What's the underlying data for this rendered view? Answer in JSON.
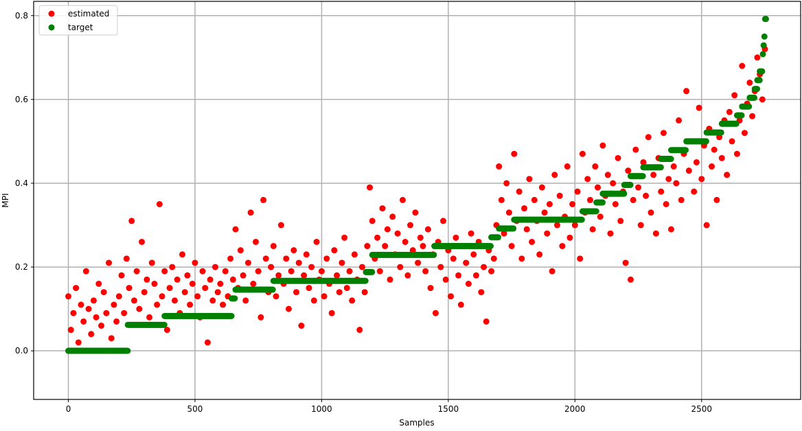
{
  "chart_data": {
    "type": "scatter",
    "title": "",
    "xlabel": "Samples",
    "ylabel": "MPI",
    "xlim": [
      -137,
      2891
    ],
    "ylim": [
      -0.116,
      0.834
    ],
    "xticks": [
      0,
      500,
      1000,
      1500,
      2000,
      2500
    ],
    "xtick_labels": [
      "0",
      "500",
      "1000",
      "1500",
      "2000",
      "2500"
    ],
    "yticks": [
      0.0,
      0.2,
      0.4,
      0.6,
      0.8
    ],
    "ytick_labels": [
      "0.0",
      "0.2",
      "0.4",
      "0.6",
      "0.8"
    ],
    "grid": true,
    "legend_placement": "top-left",
    "series": [
      {
        "name": "estimated",
        "color": "#ff0000",
        "x_step": 10,
        "y": [
          0.13,
          0.05,
          0.09,
          0.15,
          0.02,
          0.11,
          0.07,
          0.19,
          0.1,
          0.04,
          0.12,
          0.08,
          0.16,
          0.06,
          0.14,
          0.09,
          0.21,
          0.03,
          0.11,
          0.07,
          0.13,
          0.18,
          0.09,
          0.22,
          0.15,
          0.31,
          0.12,
          0.19,
          0.1,
          0.26,
          0.14,
          0.17,
          0.08,
          0.21,
          0.16,
          0.11,
          0.35,
          0.13,
          0.19,
          0.05,
          0.15,
          0.2,
          0.12,
          0.17,
          0.09,
          0.23,
          0.14,
          0.18,
          0.11,
          0.16,
          0.21,
          0.13,
          0.08,
          0.19,
          0.15,
          0.02,
          0.17,
          0.12,
          0.2,
          0.14,
          0.16,
          0.11,
          0.19,
          0.13,
          0.22,
          0.17,
          0.29,
          0.15,
          0.24,
          0.18,
          0.12,
          0.21,
          0.33,
          0.16,
          0.26,
          0.19,
          0.08,
          0.36,
          0.22,
          0.14,
          0.2,
          0.25,
          0.13,
          0.18,
          0.3,
          0.16,
          0.22,
          0.1,
          0.19,
          0.24,
          0.14,
          0.21,
          0.06,
          0.18,
          0.23,
          0.15,
          0.2,
          0.12,
          0.26,
          0.17,
          0.19,
          0.13,
          0.22,
          0.16,
          0.09,
          0.24,
          0.18,
          0.14,
          0.21,
          0.27,
          0.15,
          0.19,
          0.12,
          0.23,
          0.17,
          0.05,
          0.2,
          0.14,
          0.25,
          0.39,
          0.31,
          0.22,
          0.27,
          0.19,
          0.34,
          0.25,
          0.29,
          0.17,
          0.32,
          0.23,
          0.28,
          0.2,
          0.36,
          0.26,
          0.18,
          0.3,
          0.24,
          0.33,
          0.21,
          0.27,
          0.25,
          0.19,
          0.29,
          0.15,
          0.23,
          0.09,
          0.26,
          0.2,
          0.31,
          0.17,
          0.24,
          0.13,
          0.22,
          0.27,
          0.18,
          0.11,
          0.25,
          0.21,
          0.16,
          0.28,
          0.23,
          0.18,
          0.26,
          0.14,
          0.2,
          0.07,
          0.24,
          0.19,
          0.22,
          0.3,
          0.44,
          0.36,
          0.28,
          0.4,
          0.33,
          0.25,
          0.47,
          0.31,
          0.38,
          0.22,
          0.34,
          0.29,
          0.41,
          0.26,
          0.36,
          0.31,
          0.23,
          0.39,
          0.33,
          0.28,
          0.35,
          0.19,
          0.42,
          0.3,
          0.37,
          0.25,
          0.32,
          0.44,
          0.27,
          0.35,
          0.3,
          0.38,
          0.22,
          0.47,
          0.33,
          0.41,
          0.36,
          0.29,
          0.44,
          0.39,
          0.32,
          0.49,
          0.37,
          0.42,
          0.28,
          0.4,
          0.35,
          0.46,
          0.31,
          0.38,
          0.21,
          0.43,
          0.17,
          0.36,
          0.48,
          0.39,
          0.3,
          0.45,
          0.37,
          0.51,
          0.33,
          0.42,
          0.28,
          0.46,
          0.38,
          0.52,
          0.35,
          0.41,
          0.29,
          0.44,
          0.4,
          0.55,
          0.36,
          0.47,
          0.62,
          0.43,
          0.5,
          0.38,
          0.45,
          0.58,
          0.41,
          0.49,
          0.3,
          0.53,
          0.44,
          0.48,
          0.36,
          0.51,
          0.46,
          0.55,
          0.42,
          0.57,
          0.5,
          0.61,
          0.47,
          0.55,
          0.68,
          0.52,
          0.59,
          0.64,
          0.56,
          0.62,
          0.7,
          0.66,
          0.6,
          0.72
        ]
      },
      {
        "name": "target",
        "color": "#008000",
        "steps": [
          [
            0,
            235,
            0.0
          ],
          [
            235,
            380,
            0.062
          ],
          [
            380,
            645,
            0.083
          ],
          [
            645,
            660,
            0.125
          ],
          [
            660,
            810,
            0.146
          ],
          [
            810,
            1175,
            0.167
          ],
          [
            1175,
            1200,
            0.188
          ],
          [
            1200,
            1445,
            0.229
          ],
          [
            1445,
            1670,
            0.25
          ],
          [
            1670,
            1700,
            0.271
          ],
          [
            1700,
            1760,
            0.292
          ],
          [
            1760,
            2030,
            0.313
          ],
          [
            2030,
            2085,
            0.333
          ],
          [
            2085,
            2110,
            0.354
          ],
          [
            2110,
            2195,
            0.375
          ],
          [
            2195,
            2220,
            0.396
          ],
          [
            2220,
            2270,
            0.417
          ],
          [
            2270,
            2340,
            0.438
          ],
          [
            2340,
            2380,
            0.458
          ],
          [
            2380,
            2440,
            0.479
          ],
          [
            2440,
            2520,
            0.5
          ],
          [
            2520,
            2580,
            0.521
          ],
          [
            2580,
            2640,
            0.542
          ],
          [
            2640,
            2660,
            0.562
          ],
          [
            2660,
            2690,
            0.583
          ],
          [
            2690,
            2710,
            0.604
          ],
          [
            2710,
            2720,
            0.625
          ],
          [
            2720,
            2730,
            0.646
          ],
          [
            2730,
            2742,
            0.667
          ],
          [
            2742,
            2745,
            0.708
          ],
          [
            2745,
            2748,
            0.729
          ],
          [
            2748,
            2751,
            0.75
          ],
          [
            2751,
            2755,
            0.792
          ]
        ]
      }
    ]
  }
}
